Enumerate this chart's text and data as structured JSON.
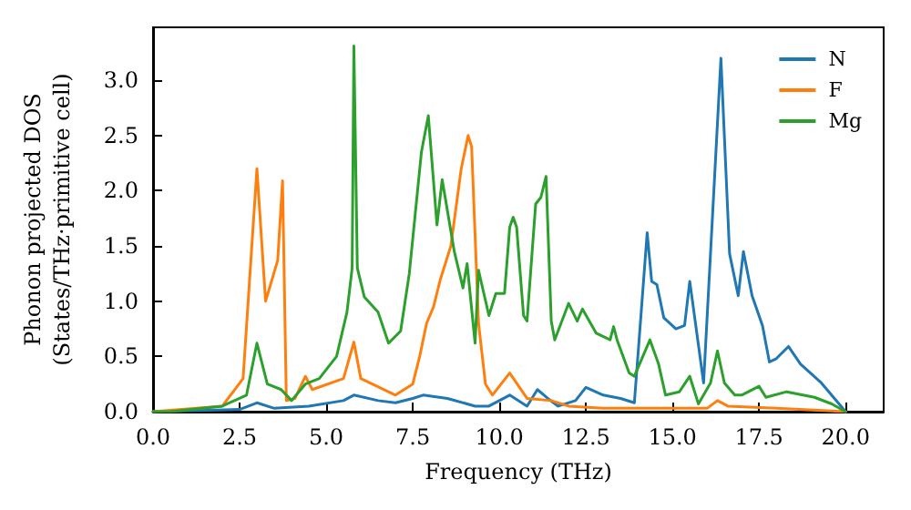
{
  "chart_data": {
    "type": "line",
    "xlabel": "Frequency (THz)",
    "ylabel": "Phonon projected DOS\n(States/THz·primitive cell)",
    "xlim": [
      0,
      21.1
    ],
    "ylim": [
      0,
      3.48
    ],
    "xticks": [
      {
        "value": 0,
        "label": "0.0"
      },
      {
        "value": 2.5,
        "label": "2.5"
      },
      {
        "value": 5,
        "label": "5.0"
      },
      {
        "value": 7.5,
        "label": "7.5"
      },
      {
        "value": 10,
        "label": "10.0"
      },
      {
        "value": 12.5,
        "label": "12.5"
      },
      {
        "value": 15,
        "label": "15.0"
      },
      {
        "value": 17.5,
        "label": "17.5"
      },
      {
        "value": 20,
        "label": "20.0"
      }
    ],
    "yticks": [
      {
        "value": 0,
        "label": "0.0"
      },
      {
        "value": 0.5,
        "label": "0.5"
      },
      {
        "value": 1,
        "label": "1.0"
      },
      {
        "value": 1.5,
        "label": "1.5"
      },
      {
        "value": 2,
        "label": "2.0"
      },
      {
        "value": 2.5,
        "label": "2.5"
      },
      {
        "value": 3,
        "label": "3.0"
      }
    ],
    "grid": false,
    "legend": "top right",
    "marker": "none",
    "line_style": "solid",
    "series": [
      {
        "name": "N",
        "color": "#1f77b4",
        "x": [
          0,
          2.5,
          3.0,
          3.5,
          4.5,
          5.5,
          5.8,
          6.5,
          7.0,
          7.5,
          7.8,
          8.5,
          9.3,
          9.7,
          10.3,
          10.8,
          11.1,
          11.4,
          11.7,
          12.2,
          12.5,
          13.0,
          13.5,
          13.9,
          14.27,
          14.4,
          14.55,
          14.75,
          15.1,
          15.35,
          15.5,
          15.9,
          16.4,
          16.65,
          16.9,
          17.05,
          17.3,
          17.6,
          17.8,
          18.0,
          18.35,
          18.7,
          19.3,
          20.0
        ],
        "values": [
          0,
          0.02,
          0.08,
          0.03,
          0.05,
          0.1,
          0.15,
          0.1,
          0.08,
          0.12,
          0.15,
          0.12,
          0.05,
          0.05,
          0.15,
          0.05,
          0.2,
          0.12,
          0.05,
          0.1,
          0.22,
          0.15,
          0.12,
          0.08,
          1.62,
          1.18,
          1.15,
          0.85,
          0.75,
          0.78,
          1.18,
          0.26,
          3.2,
          1.43,
          1.05,
          1.45,
          1.05,
          0.78,
          0.45,
          0.48,
          0.59,
          0.43,
          0.26,
          0
        ]
      },
      {
        "name": "F",
        "color": "#ff7f0e",
        "x": [
          0,
          2.0,
          2.6,
          3.0,
          3.25,
          3.6,
          3.74,
          3.85,
          4.1,
          4.4,
          4.6,
          5.5,
          5.8,
          6.0,
          7.0,
          7.5,
          7.7,
          7.9,
          8.1,
          8.3,
          8.6,
          8.9,
          9.1,
          9.2,
          9.4,
          9.6,
          9.8,
          10.3,
          10.8,
          11.5,
          12.0,
          13.0,
          16.0,
          16.3,
          16.6,
          18.0,
          20.0
        ],
        "values": [
          0,
          0.05,
          0.3,
          2.2,
          1.0,
          1.37,
          2.09,
          0.1,
          0.12,
          0.32,
          0.2,
          0.3,
          0.63,
          0.3,
          0.15,
          0.25,
          0.5,
          0.8,
          0.95,
          1.2,
          1.5,
          2.2,
          2.5,
          2.4,
          0.8,
          0.25,
          0.15,
          0.35,
          0.12,
          0.1,
          0.05,
          0.03,
          0.03,
          0.1,
          0.05,
          0.03,
          0
        ]
      },
      {
        "name": "Mg",
        "color": "#2ca02c",
        "x": [
          0,
          0.5,
          2.0,
          2.7,
          3.0,
          3.3,
          3.7,
          4.0,
          4.4,
          4.8,
          5.3,
          5.6,
          5.75,
          5.8,
          5.9,
          6.1,
          6.5,
          6.8,
          7.15,
          7.4,
          7.75,
          7.95,
          8.2,
          8.35,
          8.7,
          8.95,
          9.07,
          9.3,
          9.4,
          9.7,
          9.9,
          10.15,
          10.3,
          10.4,
          10.5,
          10.7,
          10.8,
          11.05,
          11.2,
          11.35,
          11.5,
          11.6,
          12.0,
          12.25,
          12.4,
          12.8,
          13.2,
          13.3,
          13.4,
          13.75,
          13.9,
          14.35,
          14.6,
          14.8,
          15.2,
          15.5,
          15.75,
          16.1,
          16.3,
          16.5,
          16.8,
          17.0,
          17.5,
          17.7,
          18.3,
          19.1,
          19.6,
          20.0
        ],
        "values": [
          0,
          0,
          0.05,
          0.15,
          0.62,
          0.25,
          0.2,
          0.1,
          0.25,
          0.3,
          0.5,
          0.9,
          1.3,
          3.31,
          1.3,
          1.04,
          0.9,
          0.62,
          0.73,
          1.25,
          2.35,
          2.68,
          1.69,
          2.1,
          1.45,
          1.12,
          1.34,
          0.62,
          1.28,
          0.87,
          1.07,
          1.07,
          1.67,
          1.76,
          1.67,
          0.87,
          0.82,
          1.88,
          1.94,
          2.13,
          0.82,
          0.65,
          0.98,
          0.82,
          0.93,
          0.71,
          0.65,
          0.77,
          0.65,
          0.35,
          0.32,
          0.65,
          0.43,
          0.15,
          0.18,
          0.32,
          0.07,
          0.26,
          0.55,
          0.26,
          0.15,
          0.15,
          0.23,
          0.13,
          0.18,
          0.13,
          0.07,
          0
        ]
      }
    ]
  }
}
